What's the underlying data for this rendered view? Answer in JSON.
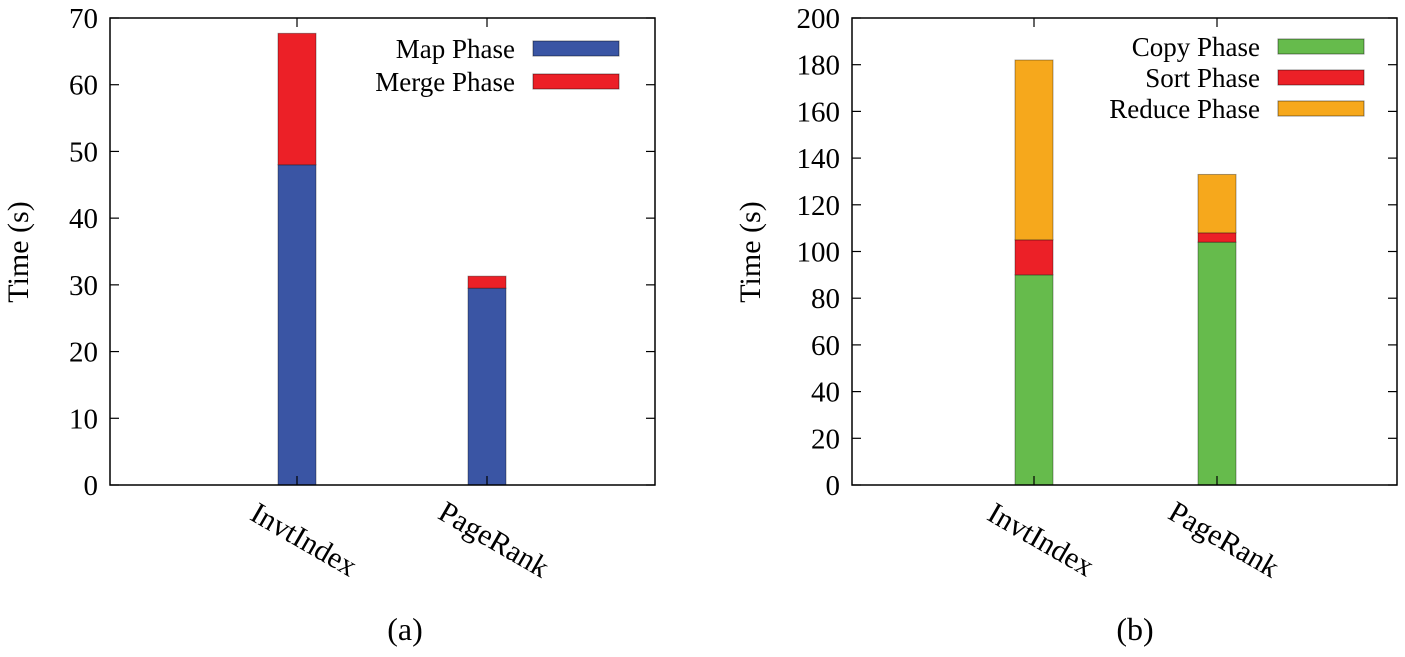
{
  "chart_data": [
    {
      "type": "bar",
      "stacked": true,
      "caption": "(a)",
      "ylabel": "Time (s)",
      "ylim": [
        0,
        70
      ],
      "yticks": [
        0,
        10,
        20,
        30,
        40,
        50,
        60,
        70
      ],
      "categories": [
        "InvtIndex",
        "PageRank"
      ],
      "legend_position": "top-right",
      "series": [
        {
          "name": "Map Phase",
          "color": "#3a55a4",
          "values": [
            48,
            29.5
          ]
        },
        {
          "name": "Merge Phase",
          "color": "#ec2027",
          "values": [
            19.7,
            1.8
          ]
        }
      ]
    },
    {
      "type": "bar",
      "stacked": true,
      "caption": "(b)",
      "ylabel": "Time (s)",
      "ylim": [
        0,
        200
      ],
      "yticks": [
        0,
        20,
        40,
        60,
        80,
        100,
        120,
        140,
        160,
        180,
        200
      ],
      "categories": [
        "InvtIndex",
        "PageRank"
      ],
      "legend_position": "top-right",
      "series": [
        {
          "name": "Copy Phase",
          "color": "#66bb4c",
          "values": [
            90,
            104
          ]
        },
        {
          "name": "Sort Phase",
          "color": "#ec2027",
          "values": [
            15,
            4
          ]
        },
        {
          "name": "Reduce Phase",
          "color": "#f6a81c",
          "values": [
            77,
            25
          ]
        }
      ]
    }
  ]
}
